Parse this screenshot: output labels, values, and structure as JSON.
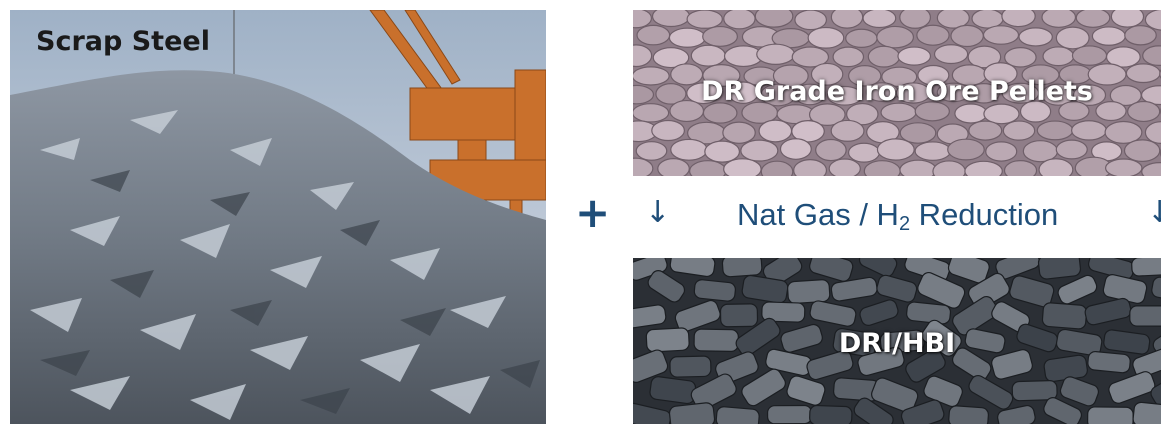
{
  "images": {
    "scrap": {
      "label": "Scrap Steel",
      "icon": "scrap-steel-photo"
    },
    "pellets": {
      "label": "DR Grade Iron Ore Pellets",
      "icon": "iron-ore-pellets-photo"
    },
    "dri": {
      "label": "DRI/HBI",
      "icon": "dri-hbi-briquettes-photo"
    }
  },
  "operator": "+",
  "arrows": {
    "left": "↓",
    "right": "↓"
  },
  "reduction": {
    "prefix": "Nat Gas / H",
    "subscript": "2",
    "suffix": " Reduction"
  },
  "colors": {
    "accent": "#1f4e79",
    "pellet": "#b8a4b0",
    "metal": "#9aa5b0"
  }
}
